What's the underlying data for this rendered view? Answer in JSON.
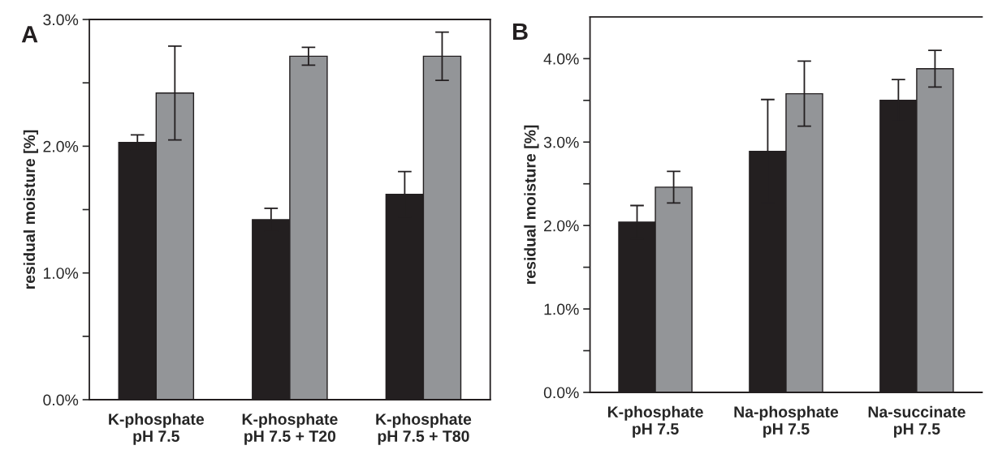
{
  "chart_data": [
    {
      "type": "bar",
      "annotations": [
        "A"
      ],
      "ylabel": "residual moisture [%]",
      "categories": [
        "K-phosphate\npH 7.5",
        "K-phosphate\npH 7.5 + T20",
        "K-phosphate\npH 7.5 + T80"
      ],
      "series": [
        {
          "color": "#231f20",
          "values": [
            2.03,
            1.42,
            1.62
          ],
          "errors": [
            0.06,
            0.09,
            0.18
          ]
        },
        {
          "color": "#939598",
          "values": [
            2.42,
            2.71,
            2.71
          ],
          "errors": [
            0.37,
            0.07,
            0.19
          ]
        }
      ],
      "ylim": [
        0,
        3.0
      ],
      "yticks": [
        {
          "value": 0,
          "label": "0.0%"
        },
        {
          "value": 0.5,
          "label": null
        },
        {
          "value": 1.0,
          "label": "1.0%"
        },
        {
          "value": 1.5,
          "label": null
        },
        {
          "value": 2.0,
          "label": "2.0%"
        },
        {
          "value": 2.5,
          "label": null
        },
        {
          "value": 3.0,
          "label": "3.0%"
        }
      ],
      "grid": false,
      "legend": false
    },
    {
      "type": "bar",
      "annotations": [
        "B"
      ],
      "ylabel": "residual moisture [%]",
      "categories": [
        "K-phosphate\npH 7.5",
        "Na-phosphate\npH 7.5",
        "Na-succinate\npH 7.5"
      ],
      "series": [
        {
          "color": "#231f20",
          "values": [
            2.04,
            2.89,
            3.5
          ],
          "errors": [
            0.2,
            0.62,
            0.25
          ]
        },
        {
          "color": "#939598",
          "values": [
            2.46,
            3.58,
            3.88
          ],
          "errors": [
            0.19,
            0.39,
            0.22
          ]
        }
      ],
      "ylim": [
        0,
        4.5
      ],
      "yticks": [
        {
          "value": 0,
          "label": "0.0%"
        },
        {
          "value": 0.5,
          "label": null
        },
        {
          "value": 1.0,
          "label": "1.0%"
        },
        {
          "value": 1.5,
          "label": null
        },
        {
          "value": 2.0,
          "label": "2.0%"
        },
        {
          "value": 2.5,
          "label": null
        },
        {
          "value": 3.0,
          "label": "3.0%"
        },
        {
          "value": 3.5,
          "label": null
        },
        {
          "value": 4.0,
          "label": "4.0%"
        }
      ],
      "grid": false,
      "legend": false
    }
  ]
}
